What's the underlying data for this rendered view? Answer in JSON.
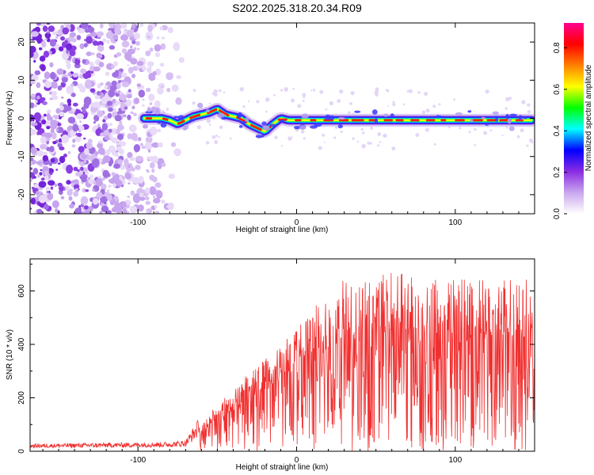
{
  "title": "S202.2025.318.20.34.R09",
  "chart_data": [
    {
      "type": "heatmap",
      "xlabel": "Height of straight line (km)",
      "ylabel": "Frequency (Hz)",
      "xlim": [
        -168,
        150
      ],
      "ylim": [
        -25,
        25
      ],
      "xticks": [
        -100,
        0,
        100
      ],
      "yticks": [
        -20,
        -10,
        0,
        10,
        20
      ],
      "colorbar": {
        "label": "Normalized spectral amplitude",
        "range": [
          0,
          0.92
        ],
        "ticks": [
          "0.0",
          "0.2",
          "0.4",
          "0.6",
          "0.8"
        ],
        "tick_values": [
          0,
          0.2,
          0.4,
          0.6,
          0.8
        ],
        "colors": [
          "#ffffff",
          "#c9a6ee",
          "#8a2be2",
          "#0000ff",
          "#00ffff",
          "#00ff00",
          "#ffff00",
          "#ff8000",
          "#ff0000",
          "#ff0090"
        ]
      },
      "noise_region": {
        "x": [
          -168,
          -70
        ],
        "y": [
          -25,
          25
        ]
      },
      "ridge": {
        "x": [
          -96,
          -90,
          -85,
          -80,
          -75,
          -70,
          -65,
          -60,
          -55,
          -50,
          -45,
          -40,
          -35,
          -30,
          -25,
          -20,
          -15,
          -10,
          -5,
          0,
          10,
          20,
          30,
          40,
          50,
          60,
          70,
          80,
          90,
          100,
          110,
          120,
          130,
          140,
          148
        ],
        "y": [
          0,
          0,
          0,
          -0.5,
          -1.5,
          -0.5,
          0.5,
          1,
          1.5,
          2.5,
          1,
          0.5,
          0,
          -1.5,
          -2.5,
          -3.5,
          -1.5,
          0,
          -0.5,
          -0.5,
          -0.5,
          -0.5,
          -0.5,
          -0.5,
          -0.5,
          -0.5,
          -0.5,
          -0.5,
          -0.5,
          -0.5,
          -0.5,
          -0.5,
          -0.5,
          -0.5,
          -0.5
        ]
      }
    },
    {
      "type": "line",
      "xlabel": "Height of straight line (km)",
      "ylabel": "SNR (10 * v/v)",
      "xlim": [
        -168,
        150
      ],
      "ylim": [
        0,
        720
      ],
      "xticks": [
        -100,
        0,
        100
      ],
      "yticks": [
        0,
        200,
        400,
        600
      ],
      "color": "#f03030",
      "envelope": {
        "x": [
          -168,
          -80,
          -70,
          -60,
          -50,
          -40,
          -30,
          -20,
          -10,
          0,
          10,
          20,
          30,
          40,
          60,
          80,
          100,
          120,
          150
        ],
        "y": [
          20,
          25,
          30,
          100,
          150,
          200,
          260,
          300,
          350,
          420,
          470,
          520,
          560,
          570,
          580,
          580,
          560,
          560,
          560
        ]
      }
    }
  ]
}
